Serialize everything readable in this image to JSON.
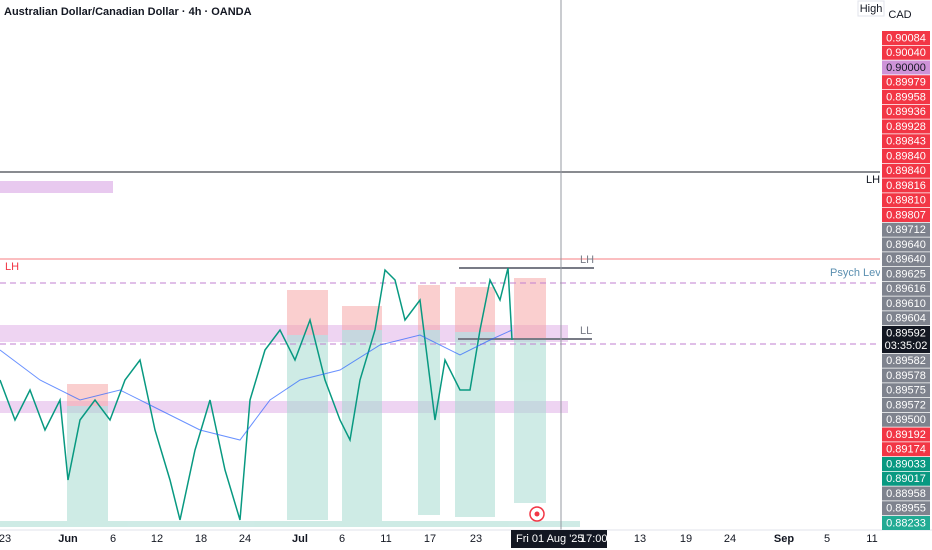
{
  "header": {
    "title": "Australian Dollar/Canadian Dollar · 4h · OANDA",
    "high_button": "High",
    "currency": "CAD"
  },
  "price_scale": [
    {
      "label": "0.90084",
      "color": "#f23645"
    },
    {
      "label": "0.90040",
      "color": "#f23645"
    },
    {
      "label": "0.90000",
      "color": "#ce93d8"
    },
    {
      "label": "0.89979",
      "color": "#f23645"
    },
    {
      "label": "0.89958",
      "color": "#f23645"
    },
    {
      "label": "0.89936",
      "color": "#f23645"
    },
    {
      "label": "0.89928",
      "color": "#f23645"
    },
    {
      "label": "0.89843",
      "color": "#f23645"
    },
    {
      "label": "0.89840",
      "color": "#f23645"
    },
    {
      "label": "0.89840",
      "color": "#f23645"
    },
    {
      "label": "0.89816",
      "color": "#f23645"
    },
    {
      "label": "0.89810",
      "color": "#f23645"
    },
    {
      "label": "0.89807",
      "color": "#f23645"
    },
    {
      "label": "0.89712",
      "color": "#7f838e"
    },
    {
      "label": "0.89640",
      "color": "#7f838e"
    },
    {
      "label": "0.89640",
      "color": "#7f838e"
    },
    {
      "label": "0.89625",
      "color": "#7f838e"
    },
    {
      "label": "0.89616",
      "color": "#7f838e"
    },
    {
      "label": "0.89610",
      "color": "#7f838e"
    },
    {
      "label": "0.89604",
      "color": "#7f838e"
    },
    {
      "label": "0.89592",
      "color": "#131722"
    },
    {
      "label": "0.89582",
      "color": "#7f838e"
    },
    {
      "label": "0.89578",
      "color": "#7f838e"
    },
    {
      "label": "0.89575",
      "color": "#7f838e"
    },
    {
      "label": "0.89572",
      "color": "#7f838e"
    },
    {
      "label": "0.89500",
      "color": "#7f838e"
    },
    {
      "label": "0.89192",
      "color": "#f23645"
    },
    {
      "label": "0.89174",
      "color": "#f23645"
    },
    {
      "label": "0.89033",
      "color": "#089981"
    },
    {
      "label": "0.89017",
      "color": "#089981"
    },
    {
      "label": "0.88958",
      "color": "#7f838e"
    },
    {
      "label": "0.88955",
      "color": "#7f838e"
    },
    {
      "label": "0.88233",
      "color": "#22ab94"
    }
  ],
  "countdown": "03:35:02",
  "time_axis": [
    "23",
    "Jun",
    "6",
    "12",
    "18",
    "24",
    "Jul",
    "6",
    "11",
    "17",
    "23",
    "13",
    "19",
    "24",
    "Sep",
    "5",
    "11"
  ],
  "crosshair_date": "Fri 01 Aug '25",
  "crosshair_time": "17:00",
  "annotations": {
    "lh_left": "LH",
    "lh_right": "LH",
    "lh_box": "LH",
    "ll_box": "LL",
    "psych": "Psych Level"
  }
}
